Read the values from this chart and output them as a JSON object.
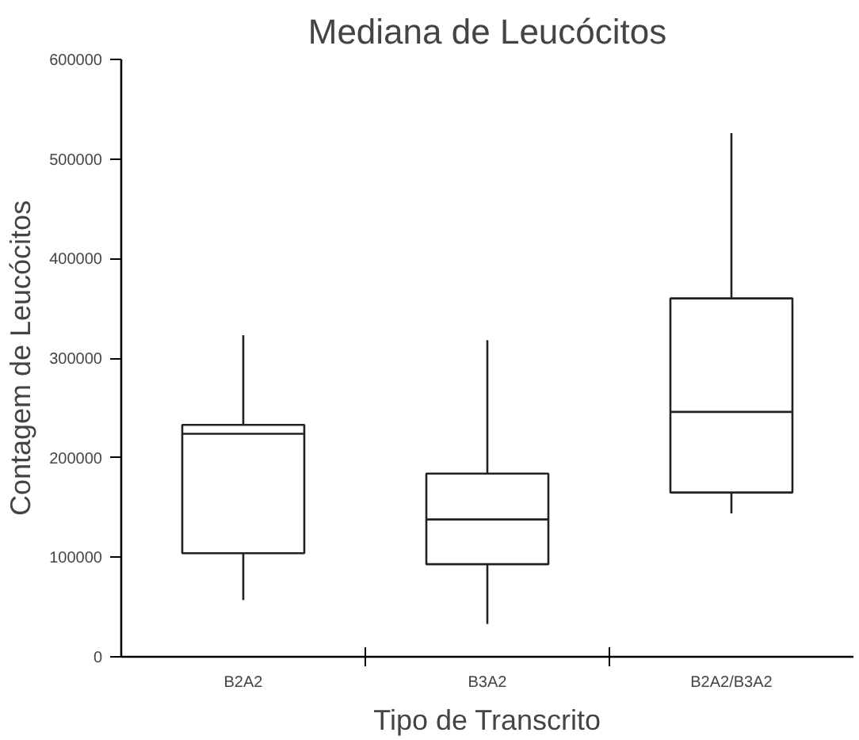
{
  "chart_data": {
    "type": "box",
    "title": "Mediana de Leucócitos",
    "xlabel": "Tipo de Transcrito",
    "ylabel": "Contagem de Leucócitos",
    "categories": [
      "B2A2",
      "B3A2",
      "B2A2/B3A2"
    ],
    "boxes": [
      {
        "low": 57000,
        "q1": 104000,
        "median": 224000,
        "q3": 233000,
        "high": 323000
      },
      {
        "low": 33000,
        "q1": 93000,
        "median": 138000,
        "q3": 184000,
        "high": 318000
      },
      {
        "low": 144000,
        "q1": 165000,
        "median": 246000,
        "q3": 360000,
        "high": 526000
      }
    ],
    "ylim": [
      0,
      600000
    ],
    "yticks": [
      0,
      100000,
      200000,
      300000,
      400000,
      500000,
      600000
    ],
    "grid": false
  }
}
